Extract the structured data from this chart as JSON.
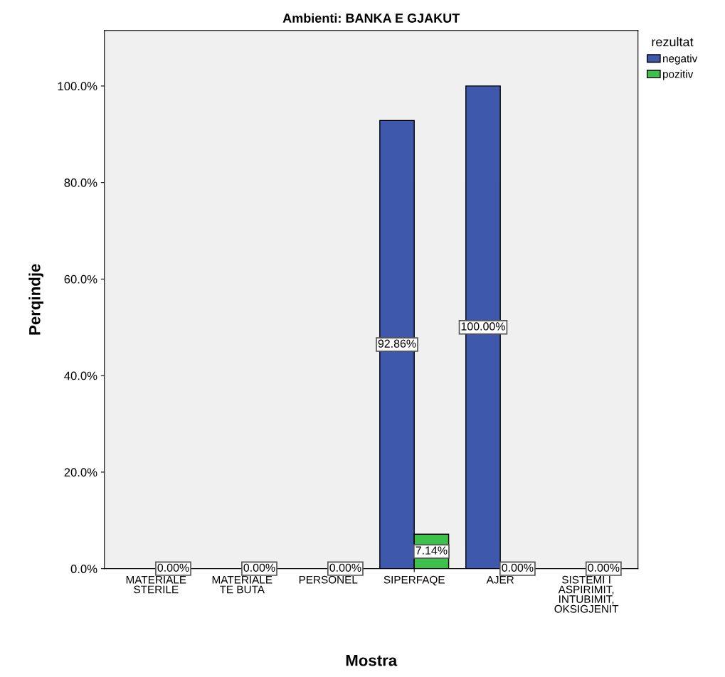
{
  "chart_data": {
    "type": "bar",
    "title": "Ambienti: BANKA E GJAKUT",
    "xlabel": "Mostra",
    "ylabel": "Perqindje",
    "legend_title": "rezultat",
    "categories": [
      "MATERIALE\nSTERILE",
      "MATERIALE\nTE BUTA",
      "PERSONEL",
      "SIPERFAQE",
      "AJER",
      "SISTEMI I\nASPIRIMIT,\nINTUBIMIT,\nOKSIGJENIT"
    ],
    "series": [
      {
        "name": "negativ",
        "color": "#3e58ac",
        "values": [
          null,
          null,
          null,
          92.86,
          100,
          null
        ],
        "value_labels": [
          null,
          null,
          null,
          "92.86%",
          "100.00%",
          null
        ]
      },
      {
        "name": "pozitiv",
        "color": "#3ec04d",
        "values": [
          0,
          0,
          0,
          7.14,
          0,
          0
        ],
        "value_labels": [
          "0.00%",
          "0.00%",
          "0.00%",
          "7.14%",
          "0.00%",
          "0.00%"
        ]
      }
    ],
    "ylim": [
      0,
      111.5
    ],
    "yticks": [
      {
        "value": 0,
        "label": "0.0%"
      },
      {
        "value": 20,
        "label": "20.0%"
      },
      {
        "value": 40,
        "label": "40.0%"
      },
      {
        "value": 60,
        "label": "60.0%"
      },
      {
        "value": 80,
        "label": "80.0%"
      },
      {
        "value": 100,
        "label": "100.0%"
      }
    ],
    "grid": false,
    "legend": "top right"
  }
}
